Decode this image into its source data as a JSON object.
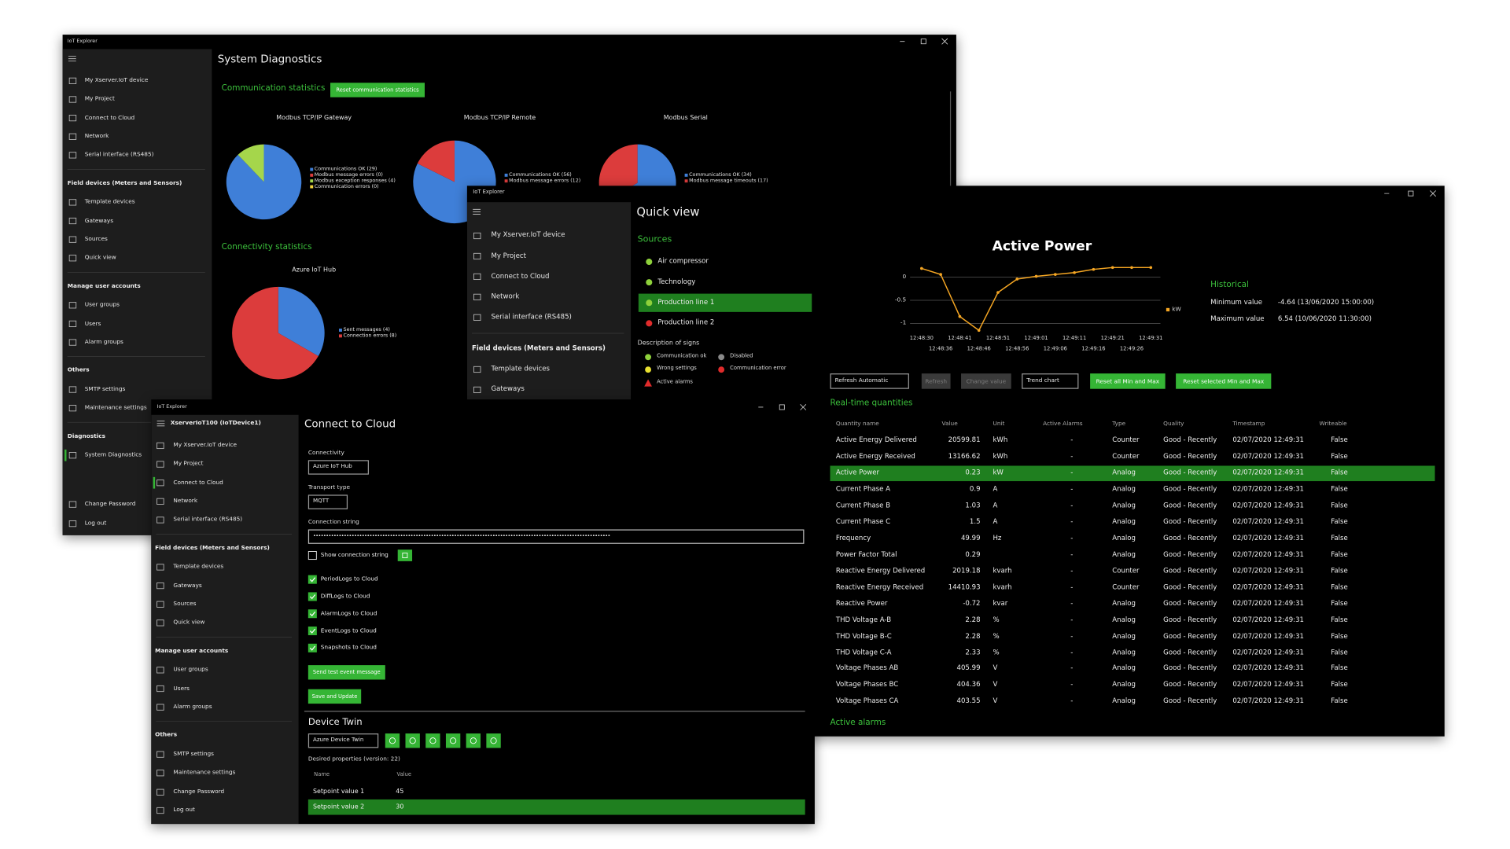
{
  "diagnostics_window": {
    "app_title": "IoT Explorer",
    "sidebar": {
      "groups": [
        {
          "items": [
            "My Xserver.IoT device",
            "My Project",
            "Connect to Cloud",
            "Network",
            "Serial interface (RS485)"
          ]
        },
        {
          "heading": "Field devices (Meters and Sensors)",
          "items": [
            "Template devices",
            "Gateways",
            "Sources",
            "Quick view"
          ]
        },
        {
          "heading": "Manage user accounts",
          "items": [
            "User groups",
            "Users",
            "Alarm groups"
          ]
        },
        {
          "heading": "Others",
          "items": [
            "SMTP settings",
            "Maintenance settings"
          ]
        },
        {
          "heading": "Diagnostics",
          "items": [
            "System Diagnostics"
          ]
        }
      ],
      "selected": [
        4,
        0
      ],
      "footer": [
        "Change Password",
        "Log out"
      ]
    },
    "page_title": "System Diagnostics",
    "communication_heading": "Communication statistics",
    "reset_button": "Reset communication statistics",
    "communication_charts": [
      {
        "type": "pie",
        "title": "Modbus TCP/IP Gateway",
        "slices": [
          {
            "name": "Communications OK (29)",
            "value": 29,
            "color": "#3f7fd8"
          },
          {
            "name": "Modbus message errors (0)",
            "value": 0,
            "color": "#dc3c3c"
          },
          {
            "name": "Modbus exception responses (4)",
            "value": 4,
            "color": "#a5d64b"
          },
          {
            "name": "Communication errors (0)",
            "value": 0,
            "color": "#f0d23c"
          }
        ]
      },
      {
        "type": "pie",
        "title": "Modbus TCP/IP Remote",
        "slices": [
          {
            "name": "Communications OK (56)",
            "value": 56,
            "color": "#3f7fd8"
          },
          {
            "name": "Modbus message errors (12)",
            "value": 12,
            "color": "#dc3c3c"
          }
        ]
      },
      {
        "type": "pie",
        "title": "Modbus Serial",
        "slices": [
          {
            "name": "Communications OK (34)",
            "value": 34,
            "color": "#3f7fd8"
          },
          {
            "name": "Modbus message timeouts (17)",
            "value": 17,
            "color": "#dc3c3c"
          }
        ]
      }
    ],
    "connectivity_heading": "Connectivity statistics",
    "connectivity_charts": [
      {
        "type": "pie",
        "title": "Azure IoT Hub",
        "slices": [
          {
            "name": "Sent messages (4)",
            "value": 4,
            "color": "#3f7fd8"
          },
          {
            "name": "Connection errors (8)",
            "value": 8,
            "color": "#dc3c3c"
          }
        ]
      }
    ]
  },
  "quickview_window": {
    "app_title": "IoT Explorer",
    "sidebar": {
      "groups": [
        {
          "items": [
            "My Xserver.IoT device",
            "My Project",
            "Connect to Cloud",
            "Network",
            "Serial interface (RS485)"
          ]
        },
        {
          "heading": "Field devices (Meters and Sensors)",
          "items": [
            "Template devices",
            "Gateways"
          ]
        }
      ]
    },
    "page_title": "Quick view",
    "sources_heading": "Sources",
    "sources": [
      {
        "name": "Air compressor",
        "color": "#8ed13b"
      },
      {
        "name": "Technology",
        "color": "#8ed13b"
      },
      {
        "name": "Production line 1",
        "color": "#8ed13b",
        "selected": true
      },
      {
        "name": "Production line 2",
        "color": "#e02b2b"
      }
    ],
    "signs_heading": "Description of signs",
    "signs": [
      {
        "label": "Communication ok",
        "color": "#8ed13b"
      },
      {
        "label": "Disabled",
        "color": "#8a8a8a"
      },
      {
        "label": "Wrong settings",
        "color": "#e8e030"
      },
      {
        "label": "Communication error",
        "color": "#e02b2b"
      },
      {
        "label": "Active alarms",
        "color": "#e02b2b",
        "shape": "triangle"
      }
    ],
    "trend": {
      "type": "line",
      "title": "Active Power",
      "categories": [
        "12:48:30",
        "12:48:36",
        "12:48:41",
        "12:48:46",
        "12:48:51",
        "12:48:56",
        "12:49:01",
        "12:49:06",
        "12:49:11",
        "12:49:16",
        "12:49:21",
        "12:49:26",
        "12:49:31"
      ],
      "series": [
        {
          "name": "kW",
          "color": "#f5a623",
          "values": [
            0.19,
            0.06,
            -0.85,
            -1.15,
            -0.33,
            -0.04,
            0.02,
            0.06,
            0.1,
            0.17,
            0.21,
            0.21,
            0.21
          ]
        }
      ],
      "ylim": [
        -1.2,
        0.35
      ],
      "yticks": [
        0,
        -0.5,
        -1
      ],
      "grid": true
    },
    "historical": {
      "heading": "Historical",
      "rows": [
        [
          "Minimum value",
          "-4.64 (13/06/2020 15:00:00)"
        ],
        [
          "Maximum value",
          "6.54 (10/06/2020 11:30:00)"
        ]
      ]
    },
    "toolbar": [
      {
        "label": "Refresh Automatic",
        "kind": "dropdown"
      },
      {
        "label": "Refresh",
        "kind": "disabled"
      },
      {
        "label": "Change value",
        "kind": "disabled"
      },
      {
        "label": "Trend chart",
        "kind": "dropdown"
      },
      {
        "label": "Reset all Min and Max",
        "kind": "primary"
      },
      {
        "label": "Reset selected Min and Max",
        "kind": "primary"
      }
    ],
    "realtime_heading": "Real-time quantities",
    "table": {
      "columns": [
        "Quantity name",
        "Value",
        "Unit",
        "Active Alarms",
        "Type",
        "Quality",
        "Timestamp",
        "Writeable"
      ],
      "rows": [
        [
          "Active Energy Delivered",
          "20599.81",
          "kWh",
          "-",
          "Counter",
          "Good - Recently",
          "02/07/2020 12:49:31",
          "False"
        ],
        [
          "Active Energy Received",
          "13166.62",
          "kWh",
          "-",
          "Counter",
          "Good - Recently",
          "02/07/2020 12:49:31",
          "False"
        ],
        [
          "Active Power",
          "0.23",
          "kW",
          "-",
          "Analog",
          "Good - Recently",
          "02/07/2020 12:49:31",
          "False"
        ],
        [
          "Current Phase A",
          "0.9",
          "A",
          "-",
          "Analog",
          "Good - Recently",
          "02/07/2020 12:49:31",
          "False"
        ],
        [
          "Current Phase B",
          "1.03",
          "A",
          "-",
          "Analog",
          "Good - Recently",
          "02/07/2020 12:49:31",
          "False"
        ],
        [
          "Current Phase C",
          "1.5",
          "A",
          "-",
          "Analog",
          "Good - Recently",
          "02/07/2020 12:49:31",
          "False"
        ],
        [
          "Frequency",
          "49.99",
          "Hz",
          "-",
          "Analog",
          "Good - Recently",
          "02/07/2020 12:49:31",
          "False"
        ],
        [
          "Power Factor Total",
          "0.29",
          null,
          "-",
          "Analog",
          "Good - Recently",
          "02/07/2020 12:49:31",
          "False"
        ],
        [
          "Reactive Energy Delivered",
          "2019.18",
          "kvarh",
          "-",
          "Counter",
          "Good - Recently",
          "02/07/2020 12:49:31",
          "False"
        ],
        [
          "Reactive Energy Received",
          "14410.93",
          "kvarh",
          "-",
          "Counter",
          "Good - Recently",
          "02/07/2020 12:49:31",
          "False"
        ],
        [
          "Reactive Power",
          "-0.72",
          "kvar",
          "-",
          "Analog",
          "Good - Recently",
          "02/07/2020 12:49:31",
          "False"
        ],
        [
          "THD Voltage A-B",
          "2.28",
          "%",
          "-",
          "Analog",
          "Good - Recently",
          "02/07/2020 12:49:31",
          "False"
        ],
        [
          "THD Voltage B-C",
          "2.28",
          "%",
          "-",
          "Analog",
          "Good - Recently",
          "02/07/2020 12:49:31",
          "False"
        ],
        [
          "THD Voltage C-A",
          "2.33",
          "%",
          "-",
          "Analog",
          "Good - Recently",
          "02/07/2020 12:49:31",
          "False"
        ],
        [
          "Voltage Phases AB",
          "405.99",
          "V",
          "-",
          "Analog",
          "Good - Recently",
          "02/07/2020 12:49:31",
          "False"
        ],
        [
          "Voltage Phases BC",
          "404.36",
          "V",
          "-",
          "Analog",
          "Good - Recently",
          "02/07/2020 12:49:31",
          "False"
        ],
        [
          "Voltage Phases CA",
          "403.55",
          "V",
          "-",
          "Analog",
          "Good - Recently",
          "02/07/2020 12:49:31",
          "False"
        ]
      ],
      "selected_row": 2
    },
    "alarms_heading": "Active alarms"
  },
  "cloud_window": {
    "app_title": "IoT Explorer",
    "device_name": "XserverIoT100 (IoTDevice1)",
    "sidebar": {
      "groups": [
        {
          "items": [
            "My Xserver.IoT device",
            "My Project",
            "Connect to Cloud",
            "Network",
            "Serial interface (RS485)"
          ]
        },
        {
          "heading": "Field devices (Meters and Sensors)",
          "items": [
            "Template devices",
            "Gateways",
            "Sources",
            "Quick view"
          ]
        },
        {
          "heading": "Manage user accounts",
          "items": [
            "User groups",
            "Users",
            "Alarm groups"
          ]
        },
        {
          "heading": "Others",
          "items": [
            "SMTP settings",
            "Maintenance settings"
          ]
        }
      ],
      "selected": [
        0,
        2
      ],
      "footer": [
        "Change Password",
        "Log out"
      ]
    },
    "page_title": "Connect to Cloud",
    "connectivity": {
      "label": "Connectivity",
      "value": "Azure IoT Hub"
    },
    "transport": {
      "label": "Transport type",
      "value": "MQTT"
    },
    "connection_string": {
      "label": "Connection string",
      "value": "••••••••••••••••••••••••••••••••••••••••••••••••••••••••••••••••••••••••••••••••••••••••••••••••••••••••••••••••••••"
    },
    "show_connection_string": {
      "label": "Show connection string",
      "checked": false
    },
    "log_options": [
      {
        "label": "PeriodLogs to Cloud",
        "checked": true
      },
      {
        "label": "DiffLogs to Cloud",
        "checked": true
      },
      {
        "label": "AlarmLogs to Cloud",
        "checked": true
      },
      {
        "label": "EventLogs to Cloud",
        "checked": true
      },
      {
        "label": "Snapshots to Cloud",
        "checked": true
      }
    ],
    "buttons": [
      "Send test event message",
      "Save and Update"
    ],
    "device_twin": {
      "heading": "Device Twin",
      "selector": "Azure Device Twin",
      "properties_label": "Desired properties (version: 22)",
      "columns": [
        "Name",
        "Value"
      ],
      "rows": [
        [
          "Setpoint value 1",
          "45"
        ],
        [
          "Setpoint value 2",
          "30"
        ]
      ],
      "selected_row": 1
    }
  }
}
